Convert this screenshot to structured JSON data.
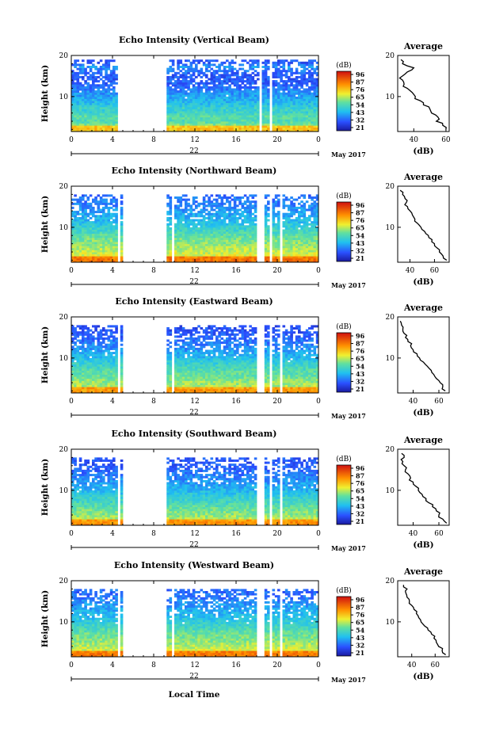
{
  "figure": {
    "common_xlabel": "Local Time",
    "month_label": "May 2017",
    "date_label": "22",
    "time_ticks": [
      "0",
      "4",
      "8",
      "12",
      "16",
      "20",
      "0"
    ],
    "height_ticks": [
      "20",
      "10"
    ],
    "ylabel": "Height (km)",
    "colorbar_unit": "(dB)",
    "colorbar_ticks": [
      "96",
      "87",
      "76",
      "65",
      "54",
      "43",
      "32",
      "21"
    ],
    "avg_title": "Average",
    "avg_xlabel": "(dB)"
  },
  "chart_data": [
    {
      "type": "heatmap",
      "title": "Echo Intensity (Vertical Beam)",
      "xlabel": "Local Time",
      "ylabel": "Height (km)",
      "xlim": [
        0,
        24
      ],
      "ylim": [
        1.5,
        20
      ],
      "colorbar": {
        "label": "(dB)",
        "ticks": [
          21,
          32,
          43,
          54,
          65,
          76,
          87,
          96
        ]
      },
      "data_gaps_hours": [
        [
          4.5,
          5.2
        ],
        [
          5.2,
          9.3
        ],
        [
          18.2,
          18.6
        ],
        [
          19.3,
          19.6
        ]
      ],
      "avg_profile": {
        "title": "Average",
        "xlabel": "(dB)",
        "xticks": [
          40,
          60
        ],
        "xlim": [
          30,
          62
        ],
        "ylim": [
          1.5,
          20
        ],
        "height_km": [
          2,
          3,
          4,
          5,
          6,
          7,
          8,
          9,
          10,
          11,
          12,
          13,
          14,
          15,
          16,
          17,
          18,
          19
        ],
        "dB": [
          60,
          58,
          54,
          55,
          51,
          50,
          46,
          44,
          41,
          39,
          36,
          34,
          33,
          33,
          36,
          40,
          33,
          32
        ]
      }
    },
    {
      "type": "heatmap",
      "title": "Echo Intensity (Northward Beam)",
      "xlabel": "Local Time",
      "ylabel": "Height (km)",
      "xlim": [
        0,
        24
      ],
      "ylim": [
        1.5,
        20
      ],
      "colorbar": {
        "label": "(dB)",
        "ticks": [
          21,
          32,
          43,
          54,
          65,
          76,
          87,
          96
        ]
      },
      "data_gaps_hours": [
        [
          4.4,
          4.8
        ],
        [
          5.1,
          9.3
        ],
        [
          9.7,
          9.9
        ],
        [
          17.9,
          18.7
        ],
        [
          19.2,
          19.5
        ],
        [
          20.3,
          20.6
        ]
      ],
      "avg_profile": {
        "title": "Average",
        "xlabel": "(dB)",
        "xticks": [
          40,
          60
        ],
        "xlim": [
          30,
          72
        ],
        "ylim": [
          1.5,
          20
        ],
        "height_km": [
          2,
          3,
          4,
          5,
          6,
          7,
          8,
          9,
          10,
          11,
          12,
          13,
          14,
          15,
          16,
          17,
          18,
          19
        ],
        "dB": [
          70,
          67,
          64,
          62,
          60,
          58,
          55,
          52,
          49,
          46,
          44,
          42,
          40,
          38,
          37,
          36,
          34,
          32
        ]
      }
    },
    {
      "type": "heatmap",
      "title": "Echo Intensity (Eastward Beam)",
      "xlabel": "Local Time",
      "ylabel": "Height (km)",
      "xlim": [
        0,
        24
      ],
      "ylim": [
        1.5,
        20
      ],
      "colorbar": {
        "label": "(dB)",
        "ticks": [
          21,
          32,
          43,
          54,
          65,
          76,
          87,
          96
        ]
      },
      "data_gaps_hours": [
        [
          4.4,
          4.8
        ],
        [
          5.1,
          9.3
        ],
        [
          9.7,
          9.9
        ],
        [
          17.9,
          18.7
        ],
        [
          19.2,
          19.5
        ],
        [
          20.3,
          20.6
        ]
      ],
      "avg_profile": {
        "title": "Average",
        "xlabel": "(dB)",
        "xticks": [
          40,
          60
        ],
        "xlim": [
          28,
          68
        ],
        "ylim": [
          1.5,
          20
        ],
        "height_km": [
          2,
          3,
          4,
          5,
          6,
          7,
          8,
          9,
          10,
          11,
          12,
          13,
          14,
          15,
          16,
          17,
          18,
          19
        ],
        "dB": [
          65,
          63,
          61,
          58,
          56,
          54,
          51,
          48,
          45,
          43,
          40,
          38,
          36,
          34,
          33,
          32,
          31,
          30
        ]
      }
    },
    {
      "type": "heatmap",
      "title": "Echo Intensity (Southward Beam)",
      "xlabel": "Local Time",
      "ylabel": "Height (km)",
      "xlim": [
        0,
        24
      ],
      "ylim": [
        1.5,
        20
      ],
      "colorbar": {
        "label": "(dB)",
        "ticks": [
          21,
          32,
          43,
          54,
          65,
          76,
          87,
          96
        ]
      },
      "data_gaps_hours": [
        [
          4.4,
          4.8
        ],
        [
          5.1,
          9.3
        ],
        [
          17.9,
          18.7
        ],
        [
          19.2,
          19.5
        ],
        [
          20.3,
          20.6
        ]
      ],
      "avg_profile": {
        "title": "Average",
        "xlabel": "(dB)",
        "xticks": [
          40,
          60
        ],
        "xlim": [
          28,
          68
        ],
        "ylim": [
          1.5,
          20
        ],
        "height_km": [
          2,
          3,
          4,
          5,
          6,
          7,
          8,
          9,
          10,
          11,
          12,
          13,
          14,
          15,
          16,
          17,
          18,
          19
        ],
        "dB": [
          66,
          63,
          60,
          58,
          55,
          52,
          50,
          47,
          44,
          42,
          40,
          38,
          36,
          34,
          33,
          32,
          33,
          31
        ]
      }
    },
    {
      "type": "heatmap",
      "title": "Echo Intensity (Westward Beam)",
      "xlabel": "Local Time",
      "ylabel": "Height (km)",
      "xlim": [
        0,
        24
      ],
      "ylim": [
        1.5,
        20
      ],
      "colorbar": {
        "label": "(dB)",
        "ticks": [
          21,
          32,
          43,
          54,
          65,
          76,
          87,
          96
        ]
      },
      "data_gaps_hours": [
        [
          4.4,
          4.8
        ],
        [
          5.1,
          9.3
        ],
        [
          9.7,
          9.9
        ],
        [
          17.9,
          18.7
        ],
        [
          19.2,
          19.5
        ],
        [
          20.3,
          20.6
        ]
      ],
      "avg_profile": {
        "title": "Average",
        "xlabel": "(dB)",
        "xticks": [
          40,
          60
        ],
        "xlim": [
          28,
          72
        ],
        "ylim": [
          1.5,
          20
        ],
        "height_km": [
          2,
          3,
          4,
          5,
          6,
          7,
          8,
          9,
          10,
          11,
          12,
          13,
          14,
          15,
          16,
          17,
          18,
          19
        ],
        "dB": [
          69,
          66,
          63,
          61,
          59,
          57,
          54,
          51,
          48,
          46,
          44,
          42,
          40,
          38,
          36,
          35,
          36,
          33
        ]
      }
    }
  ]
}
